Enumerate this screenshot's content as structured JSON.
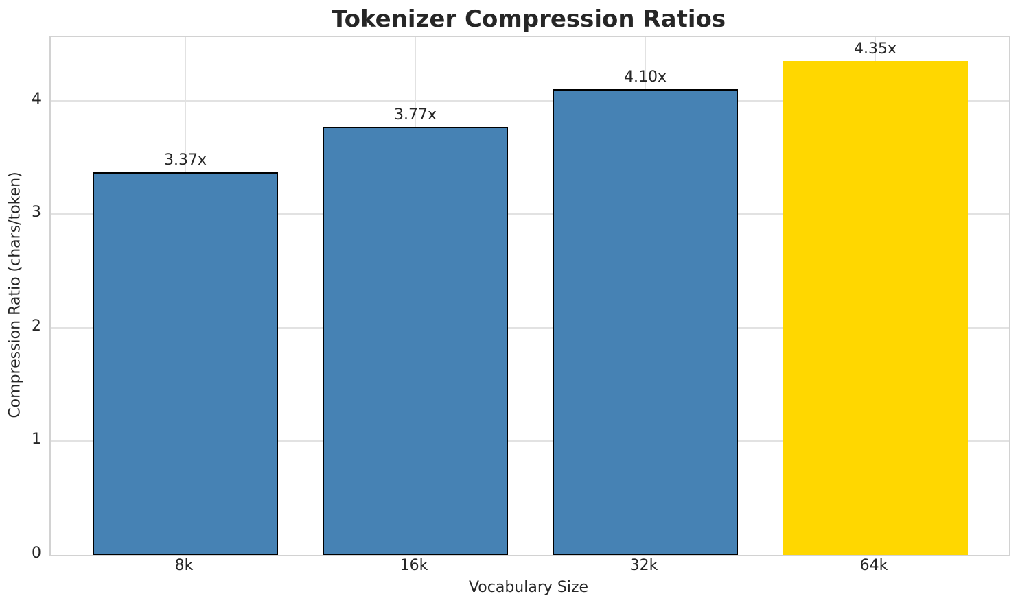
{
  "title": "Tokenizer Compression Ratios",
  "colors": {
    "bar_blue": "#4682b4",
    "bar_highlight_gold": "#ffd700",
    "bar_edge": "#000000",
    "grid": "#e2e2e2",
    "spine": "#d2d2d2",
    "text": "#262626",
    "background": "#ffffff"
  },
  "chart_data": {
    "type": "bar",
    "title": "Tokenizer Compression Ratios",
    "xlabel": "Vocabulary Size",
    "ylabel": "Compression Ratio (chars/token)",
    "categories": [
      "8k",
      "16k",
      "32k",
      "64k"
    ],
    "values": [
      3.37,
      3.77,
      4.1,
      4.35
    ],
    "bar_labels": [
      "3.37x",
      "3.77x",
      "4.10x",
      "4.35x"
    ],
    "bar_colors": [
      "#4682b4",
      "#4682b4",
      "#4682b4",
      "#ffd700"
    ],
    "bar_edge_widths": [
      2.5,
      2.5,
      2.5,
      0
    ],
    "yticks": [
      0,
      1,
      2,
      3,
      4
    ],
    "ytick_labels": [
      "0",
      "1",
      "2",
      "3",
      "4"
    ],
    "ylim": [
      0,
      4.56
    ],
    "grid": true,
    "legend_position": "none",
    "highlighted_category": "64k"
  }
}
